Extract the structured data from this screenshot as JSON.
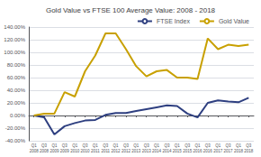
{
  "chart_data": {
    "type": "line",
    "title": "Gold Value vs FTSE 100 Average Value: 2008 - 2018",
    "categories": [
      "Q1\n2008",
      "Q3\n2008",
      "Q1\n2009",
      "Q3\n2009",
      "Q1\n2010",
      "Q3\n2010",
      "Q1\n2011",
      "Q3\n2011",
      "Q1\n2012",
      "Q3\n2012",
      "Q1\n2013",
      "Q3\n2013",
      "Q1\n2014",
      "Q3\n2014",
      "Q1\n2015",
      "Q3\n2015",
      "Q1\n2016",
      "Q3\n2016",
      "Q1\n2017",
      "Q3\n2017",
      "Q1\n2018",
      "Q3\n2018"
    ],
    "series": [
      {
        "name": "FTSE Index",
        "color": "#2e3f80",
        "values": [
          0.0,
          -0.03,
          -0.3,
          -0.17,
          -0.12,
          -0.08,
          -0.07,
          0.01,
          0.04,
          0.04,
          0.07,
          0.1,
          0.13,
          0.16,
          0.15,
          0.03,
          -0.03,
          0.2,
          0.24,
          0.22,
          0.21,
          0.28
        ]
      },
      {
        "name": "Gold Value",
        "color": "#c8a000",
        "values": [
          0.0,
          0.03,
          0.03,
          0.37,
          0.3,
          0.7,
          0.95,
          1.3,
          1.3,
          1.05,
          0.78,
          0.62,
          0.7,
          0.72,
          0.6,
          0.6,
          0.58,
          1.22,
          1.05,
          1.12,
          1.1,
          1.12
        ]
      }
    ],
    "ylim": [
      -0.4,
      1.4
    ],
    "yticks": [
      {
        "value": -0.4,
        "label": "-40.00%"
      },
      {
        "value": -0.2,
        "label": "-20.00%"
      },
      {
        "value": 0.0,
        "label": "0.00%"
      },
      {
        "value": 0.2,
        "label": "20.00%"
      },
      {
        "value": 0.4,
        "label": "40.00%"
      },
      {
        "value": 0.6,
        "label": "60.00%"
      },
      {
        "value": 0.8,
        "label": "80.00%"
      },
      {
        "value": 1.0,
        "label": "100.00%"
      },
      {
        "value": 1.2,
        "label": "120.00%"
      },
      {
        "value": 1.4,
        "label": "140.00%"
      }
    ],
    "grid": true,
    "legend": "upper right"
  }
}
